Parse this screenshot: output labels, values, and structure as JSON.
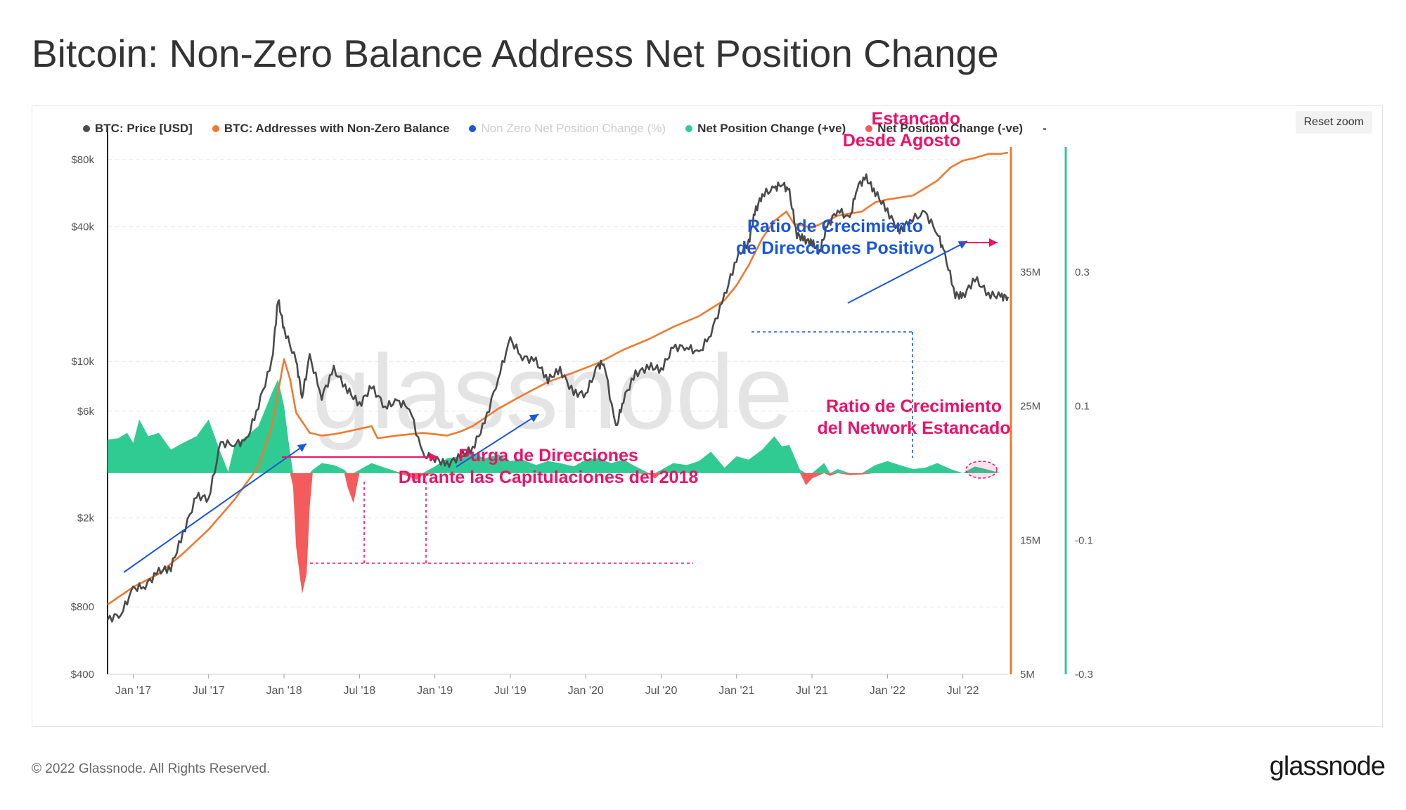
{
  "title": "Bitcoin: Non-Zero Balance Address Net Position Change",
  "footer": {
    "copyright": "© 2022 Glassnode. All Rights Reserved.",
    "brand": "glassnode"
  },
  "watermark": "glassnode",
  "toolbar": {
    "reset_zoom_label": "Reset zoom"
  },
  "legend": [
    {
      "label": "BTC: Price [USD]",
      "color": "#4a4a4a",
      "muted": false
    },
    {
      "label": "BTC: Addresses with Non-Zero Balance",
      "color": "#ee7a2f",
      "muted": false
    },
    {
      "label": "Non Zero Net Position Change (%)",
      "color": "#1a56db",
      "muted": true
    },
    {
      "label": "Net Position Change (+ve)",
      "color": "#2fcb93",
      "muted": false
    },
    {
      "label": "Net Position Change (-ve)",
      "color": "#f45b5b",
      "muted": false
    },
    {
      "label": "-",
      "color": "",
      "muted": false
    }
  ],
  "colors": {
    "price": "#4a4a4a",
    "addresses": "#ee7a2f",
    "positive": "#2fcb93",
    "negative": "#f45b5b",
    "annotation_pink": "#ee1166",
    "annotation_blue": "#1a56db",
    "axis_right_orange": "#ee7a2f",
    "axis_right_green": "#2fcb93"
  },
  "chart_data": {
    "type": "line",
    "x_range": [
      "2016-11",
      "2022-10"
    ],
    "x_ticks": [
      "Jan '17",
      "Jul '17",
      "Jan '18",
      "Jul '18",
      "Jan '19",
      "Jul '19",
      "Jan '20",
      "Jul '20",
      "Jan '21",
      "Jul '21",
      "Jan '22",
      "Jul '22"
    ],
    "y_left": {
      "scale": "log",
      "range": [
        400,
        100000
      ],
      "ticks": [
        {
          "value": 80000,
          "label": "$80k"
        },
        {
          "value": 40000,
          "label": "$40k"
        },
        {
          "value": 10000,
          "label": "$10k"
        },
        {
          "value": 6000,
          "label": "$6k"
        },
        {
          "value": 2000,
          "label": "$2k"
        },
        {
          "value": 800,
          "label": "$800"
        },
        {
          "value": 400,
          "label": "$400"
        }
      ]
    },
    "y_right_addresses": {
      "range": [
        5,
        45
      ],
      "ticks": [
        {
          "value": 35,
          "label": "35M"
        },
        {
          "value": 25,
          "label": "25M"
        },
        {
          "value": 15,
          "label": "15M"
        },
        {
          "value": 5,
          "label": "5M"
        }
      ]
    },
    "y_right_change": {
      "range": [
        -0.3,
        0.5
      ],
      "ticks": [
        {
          "value": 0.3,
          "label": "0.3"
        },
        {
          "value": 0.1,
          "label": "0.1"
        },
        {
          "value": -0.1,
          "label": "-0.1"
        },
        {
          "value": -0.3,
          "label": "-0.3"
        }
      ]
    },
    "series": [
      {
        "name": "BTC: Price [USD]",
        "axis": "left",
        "points": [
          [
            2016.83,
            700
          ],
          [
            2016.92,
            750
          ],
          [
            2017.0,
            960
          ],
          [
            2017.08,
            1000
          ],
          [
            2017.17,
            1150
          ],
          [
            2017.25,
            1200
          ],
          [
            2017.33,
            1700
          ],
          [
            2017.42,
            2500
          ],
          [
            2017.5,
            2450
          ],
          [
            2017.58,
            4300
          ],
          [
            2017.67,
            4300
          ],
          [
            2017.75,
            4400
          ],
          [
            2017.83,
            6400
          ],
          [
            2017.92,
            10000
          ],
          [
            2017.96,
            19000
          ],
          [
            2018.0,
            14000
          ],
          [
            2018.08,
            10000
          ],
          [
            2018.12,
            7000
          ],
          [
            2018.17,
            10500
          ],
          [
            2018.25,
            7000
          ],
          [
            2018.33,
            9200
          ],
          [
            2018.42,
            7500
          ],
          [
            2018.5,
            6400
          ],
          [
            2018.58,
            7700
          ],
          [
            2018.67,
            6300
          ],
          [
            2018.75,
            6600
          ],
          [
            2018.83,
            6300
          ],
          [
            2018.92,
            3800
          ],
          [
            2019.0,
            3700
          ],
          [
            2019.08,
            3450
          ],
          [
            2019.17,
            3800
          ],
          [
            2019.25,
            4100
          ],
          [
            2019.33,
            5300
          ],
          [
            2019.42,
            8500
          ],
          [
            2019.5,
            12500
          ],
          [
            2019.58,
            10500
          ],
          [
            2019.67,
            10000
          ],
          [
            2019.75,
            8300
          ],
          [
            2019.83,
            9200
          ],
          [
            2019.92,
            7200
          ],
          [
            2020.0,
            7200
          ],
          [
            2020.08,
            9500
          ],
          [
            2020.12,
            10000
          ],
          [
            2020.2,
            5000
          ],
          [
            2020.25,
            6800
          ],
          [
            2020.33,
            8800
          ],
          [
            2020.42,
            9500
          ],
          [
            2020.5,
            9200
          ],
          [
            2020.58,
            11500
          ],
          [
            2020.67,
            11700
          ],
          [
            2020.75,
            10800
          ],
          [
            2020.83,
            13500
          ],
          [
            2020.92,
            19500
          ],
          [
            2021.0,
            29000
          ],
          [
            2021.08,
            34000
          ],
          [
            2021.12,
            46000
          ],
          [
            2021.17,
            56000
          ],
          [
            2021.25,
            59000
          ],
          [
            2021.3,
            63000
          ],
          [
            2021.35,
            57000
          ],
          [
            2021.4,
            37000
          ],
          [
            2021.45,
            35000
          ],
          [
            2021.5,
            34000
          ],
          [
            2021.55,
            31000
          ],
          [
            2021.6,
            40000
          ],
          [
            2021.67,
            48000
          ],
          [
            2021.75,
            43000
          ],
          [
            2021.8,
            61000
          ],
          [
            2021.86,
            66000
          ],
          [
            2021.92,
            57000
          ],
          [
            2022.0,
            47000
          ],
          [
            2022.08,
            38000
          ],
          [
            2022.15,
            43000
          ],
          [
            2022.25,
            46000
          ],
          [
            2022.33,
            38000
          ],
          [
            2022.38,
            30000
          ],
          [
            2022.45,
            20000
          ],
          [
            2022.5,
            19500
          ],
          [
            2022.58,
            23500
          ],
          [
            2022.67,
            20000
          ],
          [
            2022.75,
            19500
          ],
          [
            2022.8,
            19500
          ]
        ]
      },
      {
        "name": "BTC: Addresses with Non-Zero Balance",
        "axis": "right_addresses",
        "points": [
          [
            2016.83,
            10.2
          ],
          [
            2017.0,
            11.5
          ],
          [
            2017.17,
            12.5
          ],
          [
            2017.33,
            14.0
          ],
          [
            2017.5,
            15.8
          ],
          [
            2017.67,
            18.0
          ],
          [
            2017.83,
            20.5
          ],
          [
            2017.92,
            23.5
          ],
          [
            2018.0,
            28.5
          ],
          [
            2018.04,
            27.0
          ],
          [
            2018.08,
            24.5
          ],
          [
            2018.17,
            23.0
          ],
          [
            2018.25,
            22.8
          ],
          [
            2018.33,
            22.9
          ],
          [
            2018.42,
            23.1
          ],
          [
            2018.5,
            23.3
          ],
          [
            2018.58,
            23.5
          ],
          [
            2018.62,
            22.6
          ],
          [
            2018.75,
            22.8
          ],
          [
            2018.92,
            23.0
          ],
          [
            2019.0,
            22.9
          ],
          [
            2019.08,
            22.8
          ],
          [
            2019.17,
            23.1
          ],
          [
            2019.25,
            23.5
          ],
          [
            2019.42,
            24.8
          ],
          [
            2019.58,
            25.8
          ],
          [
            2019.75,
            26.8
          ],
          [
            2019.92,
            27.5
          ],
          [
            2020.08,
            28.2
          ],
          [
            2020.25,
            29.2
          ],
          [
            2020.42,
            30.0
          ],
          [
            2020.58,
            30.9
          ],
          [
            2020.75,
            31.7
          ],
          [
            2020.92,
            32.9
          ],
          [
            2021.0,
            34.0
          ],
          [
            2021.08,
            35.5
          ],
          [
            2021.17,
            37.5
          ],
          [
            2021.25,
            38.8
          ],
          [
            2021.33,
            39.5
          ],
          [
            2021.38,
            38.6
          ],
          [
            2021.5,
            38.3
          ],
          [
            2021.6,
            38.8
          ],
          [
            2021.67,
            39.2
          ],
          [
            2021.83,
            39.5
          ],
          [
            2021.92,
            40.2
          ],
          [
            2022.0,
            40.4
          ],
          [
            2022.17,
            40.7
          ],
          [
            2022.33,
            41.8
          ],
          [
            2022.42,
            42.8
          ],
          [
            2022.5,
            43.3
          ],
          [
            2022.58,
            43.5
          ],
          [
            2022.67,
            43.8
          ],
          [
            2022.75,
            43.8
          ],
          [
            2022.8,
            43.9
          ]
        ]
      },
      {
        "name": "Net Position Change",
        "axis": "right_change",
        "points": [
          [
            2016.83,
            0.05
          ],
          [
            2016.9,
            0.052
          ],
          [
            2016.96,
            0.06
          ],
          [
            2017.0,
            0.045
          ],
          [
            2017.04,
            0.08
          ],
          [
            2017.1,
            0.055
          ],
          [
            2017.17,
            0.06
          ],
          [
            2017.25,
            0.035
          ],
          [
            2017.33,
            0.045
          ],
          [
            2017.42,
            0.055
          ],
          [
            2017.5,
            0.08
          ],
          [
            2017.58,
            0.03
          ],
          [
            2017.63,
            0.002
          ],
          [
            2017.67,
            0.04
          ],
          [
            2017.75,
            0.055
          ],
          [
            2017.83,
            0.07
          ],
          [
            2017.92,
            0.12
          ],
          [
            2017.96,
            0.14
          ],
          [
            2018.0,
            0.1
          ],
          [
            2018.04,
            0.03
          ],
          [
            2018.06,
            -0.02
          ],
          [
            2018.08,
            -0.11
          ],
          [
            2018.12,
            -0.18
          ],
          [
            2018.15,
            -0.15
          ],
          [
            2018.17,
            -0.05
          ],
          [
            2018.19,
            0.005
          ],
          [
            2018.25,
            0.015
          ],
          [
            2018.33,
            0.012
          ],
          [
            2018.4,
            0.005
          ],
          [
            2018.42,
            -0.02
          ],
          [
            2018.46,
            -0.045
          ],
          [
            2018.5,
            0.005
          ],
          [
            2018.58,
            0.015
          ],
          [
            2018.67,
            0.008
          ],
          [
            2018.75,
            0.002
          ],
          [
            2018.83,
            -0.005
          ],
          [
            2018.88,
            -0.01
          ],
          [
            2018.92,
            -0.003
          ],
          [
            2019.0,
            0.01
          ],
          [
            2019.08,
            0.022
          ],
          [
            2019.17,
            0.025
          ],
          [
            2019.25,
            0.03
          ],
          [
            2019.33,
            0.022
          ],
          [
            2019.42,
            0.028
          ],
          [
            2019.5,
            0.018
          ],
          [
            2019.58,
            0.02
          ],
          [
            2019.67,
            0.012
          ],
          [
            2019.75,
            0.018
          ],
          [
            2019.83,
            0.015
          ],
          [
            2019.92,
            0.01
          ],
          [
            2020.0,
            0.02
          ],
          [
            2020.08,
            0.022
          ],
          [
            2020.17,
            0.015
          ],
          [
            2020.25,
            0.02
          ],
          [
            2020.33,
            0.01
          ],
          [
            2020.42,
            -0.002
          ],
          [
            2020.46,
            -0.008
          ],
          [
            2020.5,
            0.005
          ],
          [
            2020.58,
            0.015
          ],
          [
            2020.67,
            0.012
          ],
          [
            2020.75,
            0.018
          ],
          [
            2020.83,
            0.032
          ],
          [
            2020.92,
            0.008
          ],
          [
            2021.0,
            0.025
          ],
          [
            2021.08,
            0.02
          ],
          [
            2021.17,
            0.035
          ],
          [
            2021.25,
            0.055
          ],
          [
            2021.3,
            0.04
          ],
          [
            2021.35,
            0.042
          ],
          [
            2021.42,
            0.005
          ],
          [
            2021.46,
            -0.018
          ],
          [
            2021.5,
            -0.008
          ],
          [
            2021.58,
            0.015
          ],
          [
            2021.62,
            -0.004
          ],
          [
            2021.67,
            0.006
          ],
          [
            2021.75,
            -0.003
          ],
          [
            2021.83,
            -0.002
          ],
          [
            2021.92,
            0.012
          ],
          [
            2022.0,
            0.018
          ],
          [
            2022.08,
            0.012
          ],
          [
            2022.17,
            0.006
          ],
          [
            2022.25,
            0.008
          ],
          [
            2022.33,
            0.015
          ],
          [
            2022.42,
            0.006
          ],
          [
            2022.5,
            0.0
          ],
          [
            2022.58,
            0.01
          ],
          [
            2022.67,
            0.005
          ],
          [
            2022.75,
            0.0
          ],
          [
            2022.8,
            0.0
          ]
        ]
      }
    ],
    "annotations": [
      {
        "id": "stalled-since-august",
        "lines": [
          "Estancado",
          "Desde Agosto"
        ],
        "color": "#ee1166"
      },
      {
        "id": "positive-growth-ratio",
        "lines": [
          "Ratio de Crecimiento",
          "de Direcciones Positivo"
        ],
        "color": "#1a56db"
      },
      {
        "id": "network-growth-stalled",
        "lines": [
          "Ratio de Crecimiento",
          "del Network Estancado"
        ],
        "color": "#ee1166"
      },
      {
        "id": "address-purge-2018",
        "lines": [
          "Purga de Direcciones",
          "Durante las Capitulaciones del 2018"
        ],
        "color": "#ee1166"
      }
    ]
  }
}
